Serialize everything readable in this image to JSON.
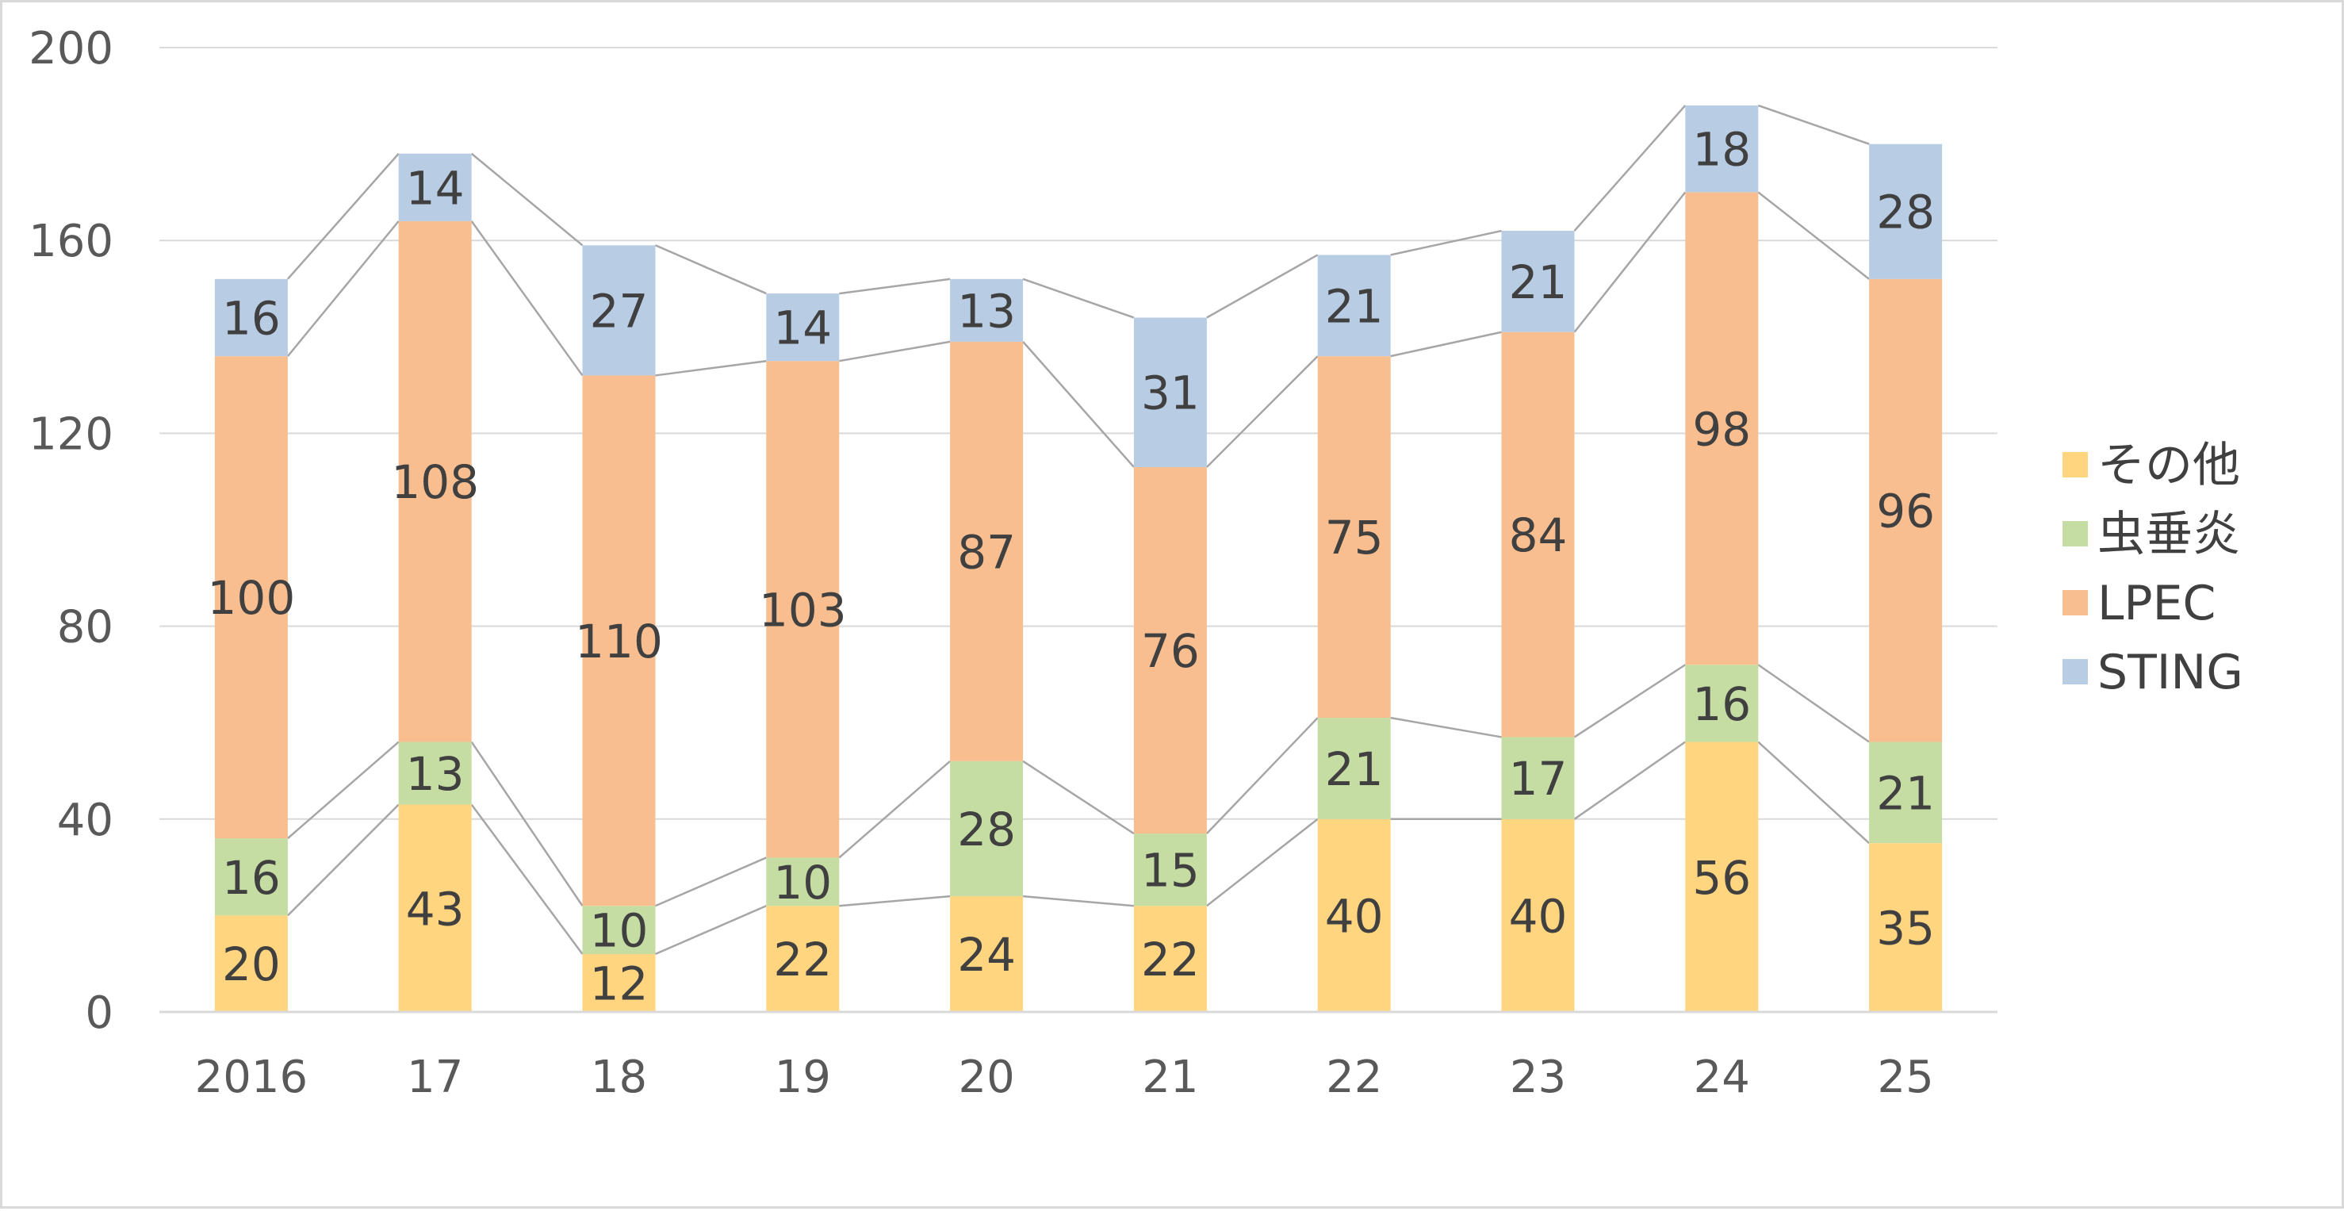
{
  "chart_data": {
    "type": "bar",
    "stacked": true,
    "series_lines": true,
    "categories": [
      "2016",
      "17",
      "18",
      "19",
      "20",
      "21",
      "22",
      "23",
      "24",
      "25"
    ],
    "series": [
      {
        "name": "その他",
        "color": "#FFD580",
        "values": [
          20,
          43,
          12,
          22,
          24,
          22,
          40,
          40,
          56,
          35
        ]
      },
      {
        "name": "虫垂炎",
        "color": "#C5DDA3",
        "values": [
          16,
          13,
          10,
          10,
          28,
          15,
          21,
          17,
          16,
          21
        ]
      },
      {
        "name": "LPEC",
        "color": "#F8BE90",
        "values": [
          100,
          108,
          110,
          103,
          87,
          76,
          75,
          84,
          98,
          96
        ]
      },
      {
        "name": "STING",
        "color": "#B8CCE4",
        "values": [
          16,
          14,
          27,
          14,
          13,
          31,
          21,
          21,
          18,
          28
        ]
      }
    ],
    "ylim": [
      0,
      200
    ],
    "yticks": [
      0,
      40,
      80,
      120,
      160,
      200
    ],
    "grid": true,
    "legend": "right",
    "title": "",
    "xlabel": "",
    "ylabel": ""
  }
}
